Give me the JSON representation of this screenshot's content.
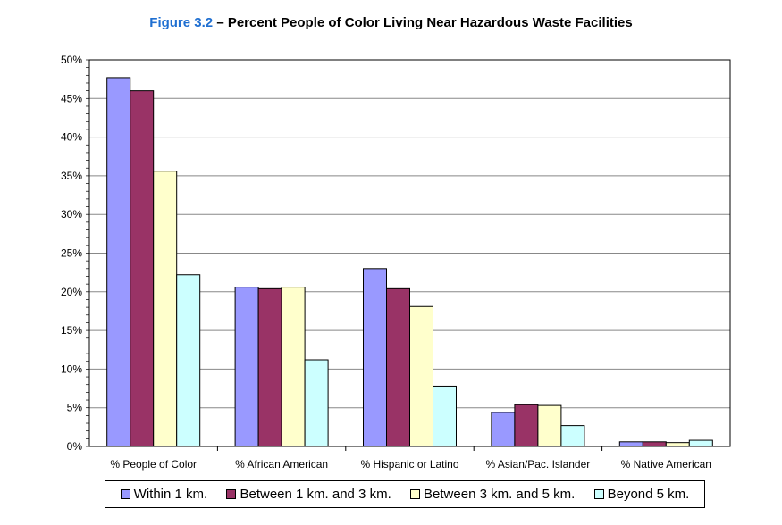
{
  "chart_data": {
    "type": "bar",
    "title_prefix": "Figure 3.2",
    "title": "– Percent People of Color Living Near Hazardous Waste Facilities",
    "categories": [
      "% People of Color",
      "% African American",
      "% Hispanic or Latino",
      "% Asian/Pac. Islander",
      "% Native American"
    ],
    "series": [
      {
        "name": "Within 1 km.",
        "color": "#9999ff",
        "values": [
          47.7,
          20.6,
          23.0,
          4.4,
          0.6
        ]
      },
      {
        "name": "Between 1 km. and 3 km.",
        "color": "#993366",
        "values": [
          46.0,
          20.4,
          20.4,
          5.4,
          0.6
        ]
      },
      {
        "name": "Between 3 km. and 5 km.",
        "color": "#ffffcc",
        "values": [
          35.6,
          20.6,
          18.1,
          5.3,
          0.5
        ]
      },
      {
        "name": "Beyond 5 km.",
        "color": "#ccffff",
        "values": [
          22.2,
          11.2,
          7.8,
          2.7,
          0.8
        ]
      }
    ],
    "ylim": [
      0,
      50
    ],
    "yticks": [
      "0%",
      "5%",
      "10%",
      "15%",
      "20%",
      "25%",
      "30%",
      "35%",
      "40%",
      "45%",
      "50%"
    ],
    "grid": true,
    "legend": "bottom"
  }
}
